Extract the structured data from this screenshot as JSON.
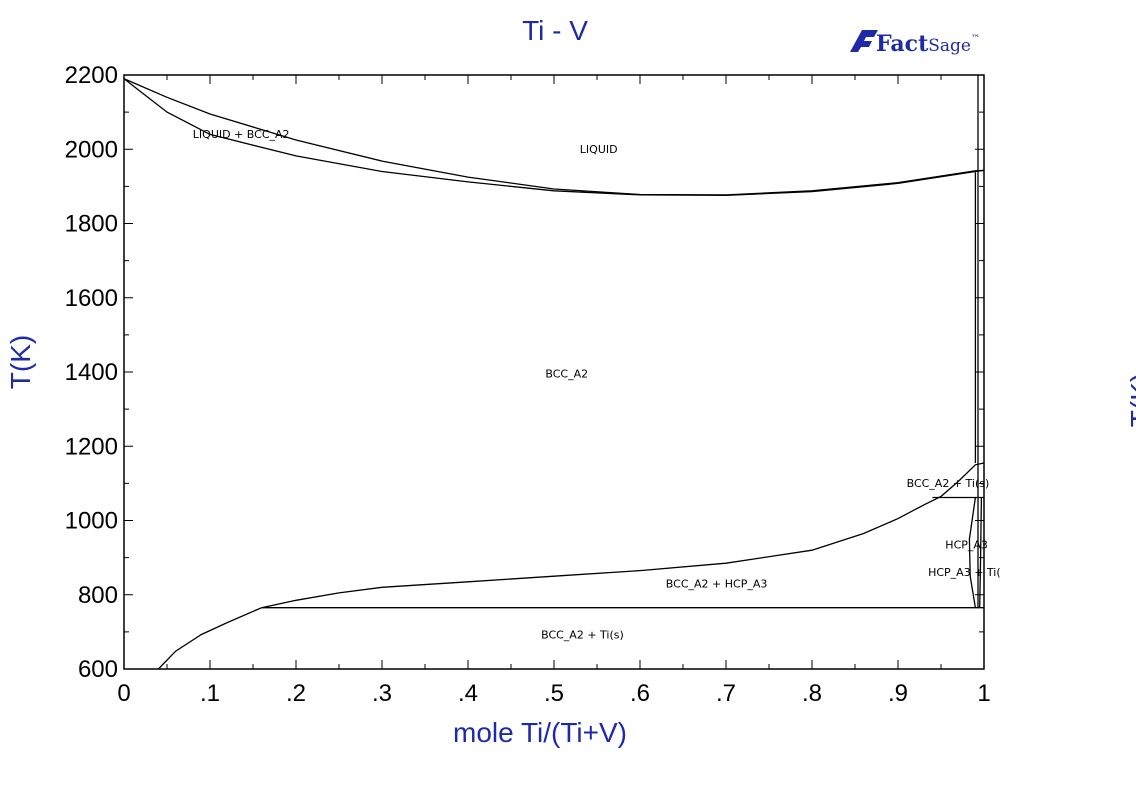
{
  "colors": {
    "title": "#1f2aa8",
    "axis_title": "#1f2aa8",
    "logo": "#1f2aa8",
    "lines": "#000000"
  },
  "logo": {
    "bold": "Fact",
    "light": "Sage",
    "mark": "™"
  },
  "chart_data": {
    "type": "line",
    "title": "Ti - V",
    "xlabel": "mole Ti/(Ti+V)",
    "ylabel": "T(K)",
    "right_ylabel_fragment": "T(K)",
    "xlim": [
      0,
      1
    ],
    "ylim": [
      600,
      2200
    ],
    "xticks": [
      0,
      0.1,
      0.2,
      0.3,
      0.4,
      0.5,
      0.6,
      0.7,
      0.8,
      0.9,
      1
    ],
    "xtick_labels": [
      "0",
      ".1",
      ".2",
      ".3",
      ".4",
      ".5",
      ".6",
      ".7",
      ".8",
      ".9",
      "1"
    ],
    "yticks": [
      600,
      800,
      1000,
      1200,
      1400,
      1600,
      1800,
      2000,
      2200
    ],
    "ytick_labels": [
      "600",
      "800",
      "1000",
      "1200",
      "1400",
      "1600",
      "1800",
      "2000",
      "2200"
    ],
    "grid": false,
    "region_labels": [
      {
        "text": "LIQUID + BCC_A2",
        "x": 0.08,
        "y": 2030
      },
      {
        "text": "LIQUID",
        "x": 0.53,
        "y": 1990
      },
      {
        "text": "BCC_A2",
        "x": 0.49,
        "y": 1385
      },
      {
        "text": "BCC_A2 + Ti(s)",
        "x": 0.91,
        "y": 1090
      },
      {
        "text": "HCP_A3",
        "x": 0.955,
        "y": 925
      },
      {
        "text": "HCP_A3 + Ti(",
        "x": 0.935,
        "y": 850
      },
      {
        "text": "BCC_A2 + HCP_A3",
        "x": 0.63,
        "y": 820
      },
      {
        "text": "BCC_A2 + Ti(s)",
        "x": 0.485,
        "y": 682
      }
    ],
    "series": [
      {
        "points": [
          [
            0,
            2190
          ],
          [
            0.05,
            2140
          ],
          [
            0.1,
            2095
          ],
          [
            0.2,
            2025
          ],
          [
            0.3,
            1968
          ],
          [
            0.4,
            1925
          ],
          [
            0.5,
            1893
          ],
          [
            0.6,
            1878
          ],
          [
            0.7,
            1877
          ],
          [
            0.8,
            1888
          ],
          [
            0.9,
            1910
          ],
          [
            0.99,
            1942
          ],
          [
            1,
            1943
          ]
        ]
      },
      {
        "points": [
          [
            0,
            2190
          ],
          [
            0.05,
            2100
          ],
          [
            0.1,
            2040
          ],
          [
            0.2,
            1982
          ],
          [
            0.3,
            1940
          ],
          [
            0.4,
            1912
          ],
          [
            0.5,
            1888
          ],
          [
            0.6,
            1877
          ],
          [
            0.7,
            1876
          ],
          [
            0.8,
            1886
          ],
          [
            0.9,
            1908
          ],
          [
            0.99,
            1940
          ],
          [
            1,
            1943
          ]
        ]
      },
      {
        "points": [
          [
            0.04,
            600
          ],
          [
            0.06,
            648
          ],
          [
            0.09,
            693
          ],
          [
            0.12,
            725
          ],
          [
            0.16,
            765
          ],
          [
            0.2,
            785
          ],
          [
            0.25,
            805
          ],
          [
            0.3,
            820
          ],
          [
            0.4,
            835
          ],
          [
            0.5,
            850
          ],
          [
            0.6,
            865
          ],
          [
            0.7,
            885
          ],
          [
            0.8,
            920
          ],
          [
            0.86,
            965
          ],
          [
            0.9,
            1005
          ],
          [
            0.93,
            1042
          ],
          [
            0.95,
            1065
          ],
          [
            0.97,
            1105
          ],
          [
            0.99,
            1150
          ],
          [
            1,
            1155
          ]
        ]
      },
      {
        "points": [
          [
            0.16,
            765
          ],
          [
            1,
            765
          ]
        ]
      },
      {
        "points": [
          [
            0.94,
            1062
          ],
          [
            1,
            1062
          ]
        ]
      },
      {
        "points": [
          [
            0.99,
            1155
          ],
          [
            0.99,
            1940
          ]
        ]
      },
      {
        "points": [
          [
            0.993,
            765
          ],
          [
            0.993,
            2200
          ]
        ]
      },
      {
        "points": [
          [
            0.99,
            765
          ],
          [
            0.984,
            850
          ],
          [
            0.983,
            950
          ],
          [
            0.99,
            1062
          ]
        ]
      },
      {
        "points": [
          [
            0.995,
            765
          ],
          [
            0.996,
            900
          ],
          [
            0.997,
            1062
          ]
        ]
      }
    ]
  }
}
